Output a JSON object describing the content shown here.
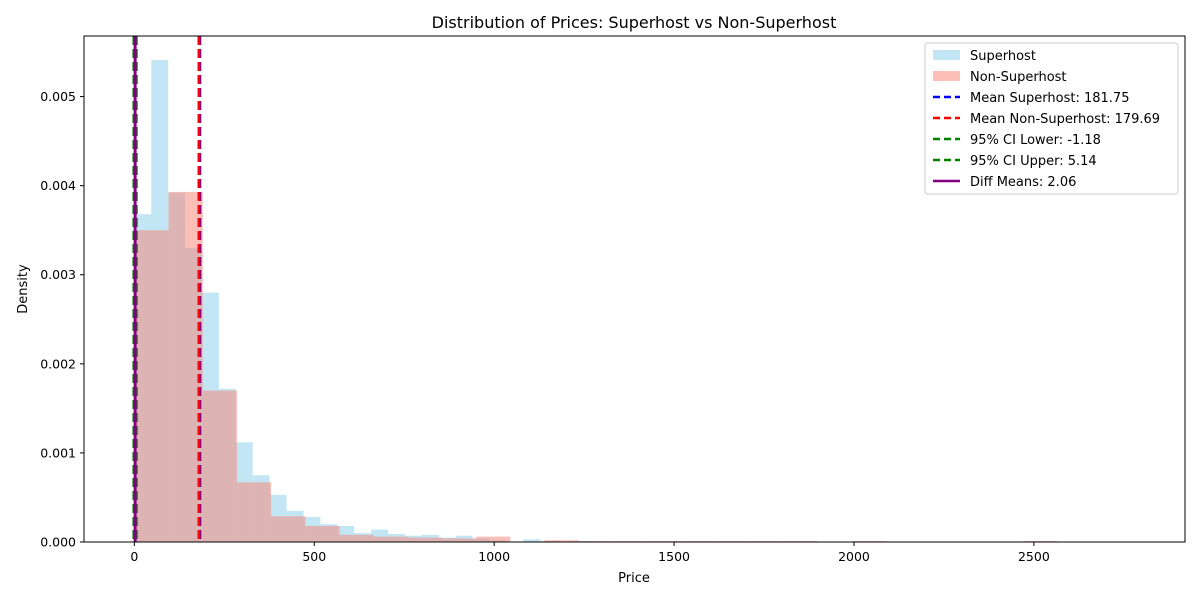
{
  "chart_data": {
    "type": "bar",
    "title": "Distribution of Prices: Superhost vs Non-Superhost",
    "xlabel": "Price",
    "ylabel": "Density",
    "xlim": [
      -140,
      2920
    ],
    "ylim": [
      0,
      0.00568
    ],
    "x_ticks": [
      0,
      500,
      1000,
      1500,
      2000,
      2500
    ],
    "x_tick_labels": [
      "0",
      "500",
      "1000",
      "1500",
      "2000",
      "2500"
    ],
    "y_ticks": [
      0.0,
      0.001,
      0.002,
      0.003,
      0.004,
      0.005
    ],
    "y_tick_labels": [
      "0.000",
      "0.001",
      "0.002",
      "0.003",
      "0.004",
      "0.005"
    ],
    "grid": false,
    "legend_position": "top-right",
    "series": [
      {
        "name": "Superhost",
        "kind": "histogram",
        "color": "#87ceeb",
        "opacity": 0.5,
        "bins": [
          {
            "x0": 0,
            "x1": 47,
            "y": 0.00368
          },
          {
            "x0": 47,
            "x1": 94,
            "y": 0.00541
          },
          {
            "x0": 94,
            "x1": 141,
            "y": 0.00392
          },
          {
            "x0": 141,
            "x1": 188,
            "y": 0.0033
          },
          {
            "x0": 188,
            "x1": 235,
            "y": 0.0028
          },
          {
            "x0": 235,
            "x1": 282,
            "y": 0.00172
          },
          {
            "x0": 282,
            "x1": 329,
            "y": 0.00112
          },
          {
            "x0": 329,
            "x1": 376,
            "y": 0.00075
          },
          {
            "x0": 376,
            "x1": 423,
            "y": 0.00053
          },
          {
            "x0": 423,
            "x1": 470,
            "y": 0.00035
          },
          {
            "x0": 470,
            "x1": 517,
            "y": 0.00028
          },
          {
            "x0": 517,
            "x1": 564,
            "y": 0.0002
          },
          {
            "x0": 564,
            "x1": 611,
            "y": 0.00018
          },
          {
            "x0": 611,
            "x1": 658,
            "y": 0.0001
          },
          {
            "x0": 658,
            "x1": 705,
            "y": 0.00014
          },
          {
            "x0": 705,
            "x1": 752,
            "y": 9e-05
          },
          {
            "x0": 752,
            "x1": 799,
            "y": 7e-05
          },
          {
            "x0": 799,
            "x1": 846,
            "y": 8e-05
          },
          {
            "x0": 846,
            "x1": 893,
            "y": 5e-05
          },
          {
            "x0": 893,
            "x1": 940,
            "y": 7e-05
          },
          {
            "x0": 940,
            "x1": 987,
            "y": 4e-05
          },
          {
            "x0": 987,
            "x1": 1034,
            "y": 2e-05
          },
          {
            "x0": 1081,
            "x1": 1128,
            "y": 3e-05
          },
          {
            "x0": 1128,
            "x1": 1175,
            "y": 1e-05
          },
          {
            "x0": 1222,
            "x1": 1269,
            "y": 1e-05
          }
        ]
      },
      {
        "name": "Non-Superhost",
        "kind": "histogram",
        "color": "#fa8072",
        "opacity": 0.5,
        "bins": [
          {
            "x0": 0,
            "x1": 95,
            "y": 0.0035
          },
          {
            "x0": 95,
            "x1": 190,
            "y": 0.00393
          },
          {
            "x0": 190,
            "x1": 285,
            "y": 0.0017
          },
          {
            "x0": 285,
            "x1": 380,
            "y": 0.00067
          },
          {
            "x0": 380,
            "x1": 475,
            "y": 0.00029
          },
          {
            "x0": 475,
            "x1": 570,
            "y": 0.00018
          },
          {
            "x0": 570,
            "x1": 665,
            "y": 8e-05
          },
          {
            "x0": 665,
            "x1": 760,
            "y": 6e-05
          },
          {
            "x0": 760,
            "x1": 855,
            "y": 5e-05
          },
          {
            "x0": 855,
            "x1": 950,
            "y": 4e-05
          },
          {
            "x0": 950,
            "x1": 1045,
            "y": 6e-05
          },
          {
            "x0": 1140,
            "x1": 1235,
            "y": 2e-05
          },
          {
            "x0": 1235,
            "x1": 1330,
            "y": 1e-05
          },
          {
            "x0": 1330,
            "x1": 1425,
            "y": 1e-05
          },
          {
            "x0": 1425,
            "x1": 1520,
            "y": 1e-05
          },
          {
            "x0": 1520,
            "x1": 1615,
            "y": 1e-05
          },
          {
            "x0": 1615,
            "x1": 1710,
            "y": 1e-05
          },
          {
            "x0": 1710,
            "x1": 1805,
            "y": 1e-05
          },
          {
            "x0": 1805,
            "x1": 1900,
            "y": 1e-05
          },
          {
            "x0": 1995,
            "x1": 2090,
            "y": 1e-05
          },
          {
            "x0": 2470,
            "x1": 2565,
            "y": 1e-05
          }
        ]
      }
    ],
    "reference_lines": [
      {
        "label": "Mean Superhost: 181.75",
        "x": 181.75,
        "color": "#0000ff",
        "style": "dashed"
      },
      {
        "label": "Mean Non-Superhost: 179.69",
        "x": 179.69,
        "color": "#ff0000",
        "style": "dashed"
      },
      {
        "label": "95% CI Lower: -1.18",
        "x": -1.18,
        "color": "#008000",
        "style": "dashed"
      },
      {
        "label": "95% CI Upper: 5.14",
        "x": 5.14,
        "color": "#008000",
        "style": "dashed"
      },
      {
        "label": "Diff Means: 2.06",
        "x": 2.06,
        "color": "#800080",
        "style": "solid"
      }
    ]
  }
}
